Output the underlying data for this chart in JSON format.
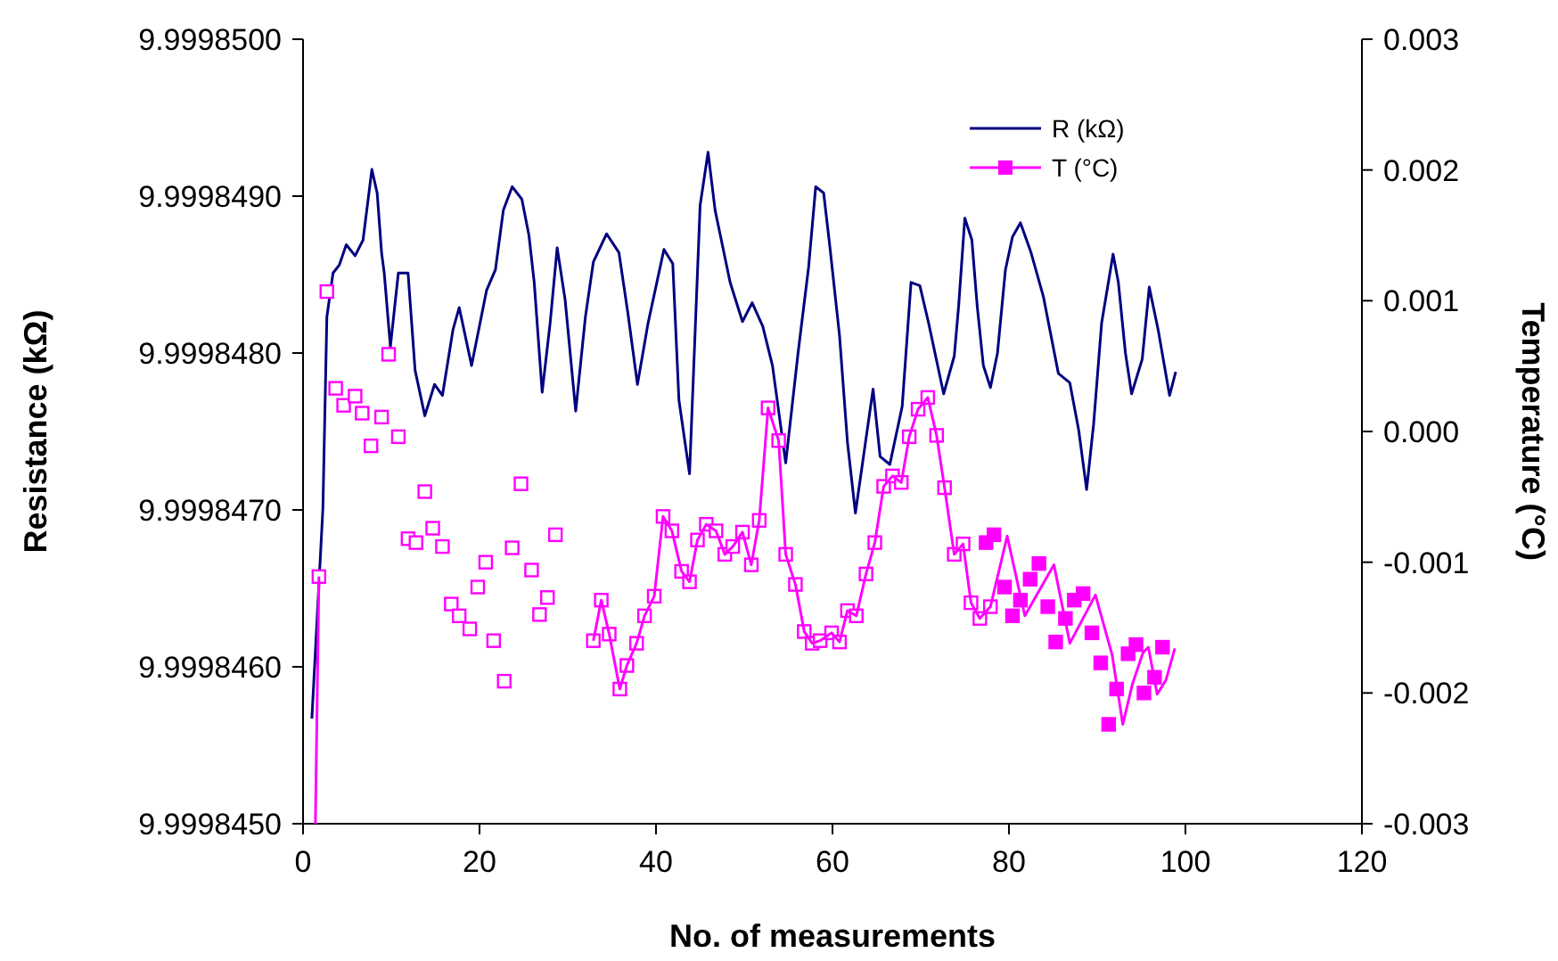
{
  "chart_data": {
    "type": "line",
    "xlabel": "No. of measurements",
    "ylabel": "Resistance (kΩ)",
    "y2label": "Temperature (°C)",
    "xlim": [
      0,
      120
    ],
    "xticks": [
      0,
      20,
      40,
      60,
      80,
      100,
      120
    ],
    "ylim": [
      9.999845,
      9.99985
    ],
    "yticks": [
      {
        "value": 9.999845,
        "label": "9.9998450"
      },
      {
        "value": 9.999846,
        "label": "9.9998460"
      },
      {
        "value": 9.999847,
        "label": "9.9998470"
      },
      {
        "value": 9.999848,
        "label": "9.9998480"
      },
      {
        "value": 9.999849,
        "label": "9.9998490"
      },
      {
        "value": 9.99985,
        "label": "9.9998500"
      }
    ],
    "y2lim": [
      -0.003,
      0.003
    ],
    "y2ticks": [
      -0.003,
      -0.002,
      -0.001,
      {
        "value": 0,
        "label": "0.000"
      },
      0.001,
      0.002,
      0.003
    ],
    "grid": false,
    "legend": "top right",
    "series": [
      {
        "name": "R (kΩ)",
        "color": "#000080",
        "marker": "none",
        "x": [
          1,
          2.25,
          2.7,
          3.4,
          4.1,
          4.9,
          5.9,
          6.8,
          7.8,
          8.4,
          8.9,
          9.2,
          9.9,
          10.8,
          11.9,
          12.7,
          13.8,
          14.9,
          15.8,
          17,
          17.7,
          19.1,
          20.8,
          21.8,
          22.7,
          23.7,
          24.8,
          25.6,
          26.2,
          27.1,
          28,
          28.8,
          29.7,
          30.9,
          32,
          32.9,
          34.4,
          35.8,
          36.8,
          37.9,
          39.1,
          40.9,
          41.9,
          42.6,
          43.8,
          45,
          45.9,
          46.7,
          48.4,
          49.8,
          50.9,
          52.1,
          53.2,
          54.7,
          56.1,
          57.3,
          58.1,
          59,
          59.7,
          60.8,
          61.7,
          62.6,
          64.6,
          65.4,
          66.5,
          67.9,
          68.9,
          69.9,
          70.9,
          72.6,
          73.8,
          74.3,
          75,
          75.8,
          76.4,
          77.1,
          77.9,
          78.7,
          79.6,
          80.4,
          81.3,
          82.5,
          83.9,
          85.6,
          86.9,
          87.9,
          88.8,
          89.6,
          90.5,
          91.8,
          92.4,
          93.2,
          93.9,
          95.1,
          95.9,
          96.9,
          98.2,
          98.9
        ],
        "values": [
          9.99984567,
          9.99984701,
          9.99984823,
          9.99984851,
          9.99984856,
          9.99984869,
          9.99984862,
          9.99984872,
          9.99984917,
          9.99984902,
          9.99984864,
          9.99984851,
          9.99984804,
          9.99984851,
          9.99984851,
          9.99984789,
          9.9998476,
          9.9998478,
          9.99984773,
          9.99984815,
          9.99984829,
          9.99984792,
          9.9998484,
          9.99984853,
          9.99984891,
          9.99984906,
          9.99984898,
          9.99984875,
          9.99984845,
          9.99984775,
          9.99984819,
          9.99984867,
          9.99984834,
          9.99984763,
          9.99984823,
          9.99984858,
          9.99984876,
          9.99984864,
          9.99984826,
          9.9998478,
          9.99984819,
          9.99984866,
          9.99984857,
          9.9998477,
          9.99984723,
          9.99984894,
          9.99984928,
          9.99984891,
          9.99984845,
          9.9998482,
          9.99984832,
          9.99984817,
          9.99984792,
          9.9998473,
          9.999848,
          9.99984855,
          9.99984906,
          9.99984902,
          9.99984868,
          9.99984811,
          9.99984743,
          9.99984698,
          9.99984777,
          9.99984734,
          9.99984729,
          9.99984766,
          9.99984845,
          9.99984843,
          9.99984819,
          9.99984774,
          9.99984798,
          9.9998483,
          9.99984886,
          9.99984872,
          9.9998483,
          9.99984792,
          9.99984778,
          9.999848,
          9.99984853,
          9.99984874,
          9.99984883,
          9.99984864,
          9.99984836,
          9.99984787,
          9.99984781,
          9.99984751,
          9.99984713,
          9.99984755,
          9.99984819,
          9.99984863,
          9.99984845,
          9.999848,
          9.99984774,
          9.99984796,
          9.99984842,
          9.99984815,
          9.99984773,
          9.99984788
        ]
      },
      {
        "type": "scatter",
        "axis": "y2",
        "color": "#ff00ff",
        "marker": "square",
        "x": [
          1.8,
          2.7,
          3.7,
          4.6,
          5.9,
          6.7,
          7.7,
          8.9,
          9.7,
          10.8,
          11.9,
          12.8,
          13.8,
          14.7,
          15.8,
          16.8,
          17.7,
          18.9,
          19.8,
          20.7,
          21.6,
          22.8,
          23.7,
          24.7,
          25.9,
          26.8,
          27.7,
          28.6,
          32.9,
          33.8,
          34.7,
          35.9,
          36.7,
          37.8,
          38.7,
          39.8,
          40.8,
          41.8,
          42.9,
          43.8,
          44.7,
          45.7,
          46.8,
          47.8,
          48.7,
          49.8,
          50.8,
          51.7,
          52.7,
          53.9,
          54.7,
          55.8,
          56.8,
          57.7,
          58.6,
          59.9,
          60.8,
          61.7,
          62.7,
          63.8,
          64.8,
          65.8,
          66.8,
          67.8,
          68.7,
          69.7,
          70.8,
          71.8,
          72.7,
          73.8,
          74.8,
          75.7,
          76.7,
          77.9
        ],
        "values": [
          -0.00111,
          0.00107,
          0.00033,
          0.0002,
          0.00027,
          0.00014,
          -0.00011,
          0.00011,
          0.00059,
          -4e-05,
          -0.00082,
          -0.00085,
          -0.00046,
          -0.00074,
          -0.00088,
          -0.00132,
          -0.00141,
          -0.00151,
          -0.00119,
          -0.001,
          -0.0016,
          -0.00191,
          -0.00089,
          -0.0004,
          -0.00106,
          -0.0014,
          -0.00127,
          -0.00079,
          -0.0016,
          -0.00129,
          -0.00155,
          -0.00197,
          -0.00179,
          -0.00162,
          -0.00141,
          -0.00126,
          -0.00065,
          -0.00076,
          -0.00107,
          -0.00115,
          -0.00083,
          -0.00071,
          -0.00076,
          -0.00094,
          -0.00088,
          -0.00077,
          -0.00102,
          -0.00068,
          0.00018,
          -7e-05,
          -0.00094,
          -0.00117,
          -0.00153,
          -0.00162,
          -0.0016,
          -0.00154,
          -0.00161,
          -0.00137,
          -0.00141,
          -0.00109,
          -0.00085,
          -0.00042,
          -0.00034,
          -0.00039,
          -4e-05,
          0.00017,
          0.00026,
          -3e-05,
          -0.00043,
          -0.00094,
          -0.00086,
          -0.00131,
          -0.00143,
          -0.00134
        ]
      },
      {
        "name": "T (°C)",
        "type": "scatter",
        "axis": "y2",
        "color": "#ff00ff",
        "marker": "square",
        "x": [
          77.4,
          78.3,
          79.5,
          80.4,
          81.3,
          82.4,
          83.4,
          84.4,
          85.3,
          86.4,
          87.4,
          88.4,
          89.4,
          90.4,
          91.3,
          92.2,
          93.5,
          94.4,
          95.3,
          96.5,
          97.4
        ],
        "values": [
          -0.00085,
          -0.00079,
          -0.00119,
          -0.00141,
          -0.00129,
          -0.00113,
          -0.00101,
          -0.00134,
          -0.00161,
          -0.00143,
          -0.00129,
          -0.00124,
          -0.00154,
          -0.00177,
          -0.00224,
          -0.00197,
          -0.0017,
          -0.00163,
          -0.002,
          -0.00188,
          -0.00165
        ]
      },
      {
        "type": "line",
        "axis": "y2",
        "color": "#ff00ff",
        "marker": "none",
        "x": [
          1.4,
          1.8,
          10,
          32.9,
          33.8,
          34.7,
          35.9,
          36.7,
          37.8,
          38.7,
          39.8,
          40.8,
          41.8,
          42.9,
          43.8,
          44.7,
          45.7,
          46.8,
          47.8,
          48.7,
          49.8,
          50.8,
          51.7,
          52.7,
          53.9,
          54.7,
          55.8,
          56.8,
          57.7,
          58.6,
          59.9,
          60.8,
          61.7,
          62.7,
          63.8,
          64.8,
          65.8,
          66.8,
          67.8,
          68.7,
          69.7,
          70.8,
          71.8,
          72.7,
          73.8,
          74.8,
          75.7,
          76.7,
          77.9,
          79.8,
          81.8,
          85.1,
          86.9,
          89.8,
          91.7,
          92.9,
          94,
          95.2,
          95.8,
          96.8,
          97.8,
          98.8
        ],
        "values": [
          -0.003,
          -0.00111,
          null,
          -0.0016,
          -0.00129,
          -0.00155,
          -0.00197,
          -0.00179,
          -0.00162,
          -0.00141,
          -0.00126,
          -0.00065,
          -0.00076,
          -0.00107,
          -0.00115,
          -0.00083,
          -0.00071,
          -0.00076,
          -0.00094,
          -0.00088,
          -0.00077,
          -0.00102,
          -0.00068,
          0.00018,
          -7e-05,
          -0.00094,
          -0.00117,
          -0.00153,
          -0.00162,
          -0.0016,
          -0.00154,
          -0.00161,
          -0.00137,
          -0.00141,
          -0.00109,
          -0.00085,
          -0.00042,
          -0.00034,
          -0.00039,
          -4e-05,
          0.00017,
          0.00026,
          -3e-05,
          -0.00043,
          -0.00094,
          -0.00086,
          -0.00131,
          -0.00143,
          -0.00134,
          -0.0008,
          -0.00141,
          -0.00102,
          -0.00162,
          -0.00125,
          -0.00171,
          -0.00224,
          -0.00193,
          -0.00169,
          -0.00165,
          -0.00201,
          -0.0019,
          -0.00166
        ]
      }
    ]
  }
}
